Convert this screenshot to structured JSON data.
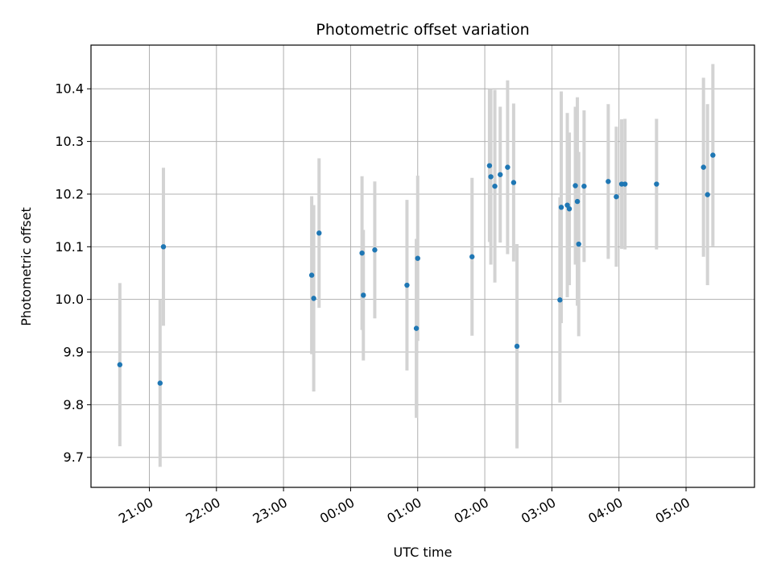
{
  "chart_data": {
    "type": "scatter",
    "title": "Photometric offset variation",
    "xlabel": "UTC time",
    "ylabel": "Photometric offset",
    "x_unit": "hours since 00:00 UTC (negative = previous day)",
    "xlim": [
      -3.87,
      6.02
    ],
    "ylim": [
      9.643,
      10.483
    ],
    "x_ticks": [
      {
        "value": -3,
        "label": "21:00"
      },
      {
        "value": -2,
        "label": "22:00"
      },
      {
        "value": -1,
        "label": "23:00"
      },
      {
        "value": 0,
        "label": "00:00"
      },
      {
        "value": 1,
        "label": "01:00"
      },
      {
        "value": 2,
        "label": "02:00"
      },
      {
        "value": 3,
        "label": "03:00"
      },
      {
        "value": 4,
        "label": "04:00"
      },
      {
        "value": 5,
        "label": "05:00"
      }
    ],
    "y_ticks": [
      {
        "value": 9.7,
        "label": "9.7"
      },
      {
        "value": 9.8,
        "label": "9.8"
      },
      {
        "value": 9.9,
        "label": "9.9"
      },
      {
        "value": 10.0,
        "label": "10.0"
      },
      {
        "value": 10.1,
        "label": "10.1"
      },
      {
        "value": 10.2,
        "label": "10.2"
      },
      {
        "value": 10.3,
        "label": "10.3"
      },
      {
        "value": 10.4,
        "label": "10.4"
      }
    ],
    "grid": true,
    "point_color": "#1f77b4",
    "errorbar_color": "#d3d3d3",
    "points": [
      {
        "x": -3.44,
        "y": 9.876,
        "err": 0.155
      },
      {
        "x": -2.84,
        "y": 9.841,
        "err": 0.159
      },
      {
        "x": -2.79,
        "y": 10.1,
        "err": 0.15
      },
      {
        "x": -0.58,
        "y": 10.046,
        "err": 0.15
      },
      {
        "x": -0.55,
        "y": 10.002,
        "err": 0.177
      },
      {
        "x": -0.47,
        "y": 10.126,
        "err": 0.142
      },
      {
        "x": 0.17,
        "y": 10.088,
        "err": 0.146
      },
      {
        "x": 0.19,
        "y": 10.008,
        "err": 0.124
      },
      {
        "x": 0.36,
        "y": 10.094,
        "err": 0.13
      },
      {
        "x": 0.84,
        "y": 10.027,
        "err": 0.162
      },
      {
        "x": 0.98,
        "y": 9.945,
        "err": 0.17
      },
      {
        "x": 1.0,
        "y": 10.078,
        "err": 0.157
      },
      {
        "x": 1.81,
        "y": 10.081,
        "err": 0.15
      },
      {
        "x": 2.07,
        "y": 10.254,
        "err": 0.145
      },
      {
        "x": 2.09,
        "y": 10.233,
        "err": 0.167
      },
      {
        "x": 2.15,
        "y": 10.215,
        "err": 0.183
      },
      {
        "x": 2.23,
        "y": 10.237,
        "err": 0.129
      },
      {
        "x": 2.34,
        "y": 10.251,
        "err": 0.165
      },
      {
        "x": 2.43,
        "y": 10.222,
        "err": 0.15
      },
      {
        "x": 2.48,
        "y": 9.911,
        "err": 0.194
      },
      {
        "x": 3.12,
        "y": 9.999,
        "err": 0.195
      },
      {
        "x": 3.14,
        "y": 10.175,
        "err": 0.22
      },
      {
        "x": 3.23,
        "y": 10.179,
        "err": 0.175
      },
      {
        "x": 3.26,
        "y": 10.172,
        "err": 0.145
      },
      {
        "x": 3.35,
        "y": 10.216,
        "err": 0.15
      },
      {
        "x": 3.38,
        "y": 10.186,
        "err": 0.198
      },
      {
        "x": 3.4,
        "y": 10.105,
        "err": 0.175
      },
      {
        "x": 3.48,
        "y": 10.215,
        "err": 0.144
      },
      {
        "x": 3.84,
        "y": 10.224,
        "err": 0.147
      },
      {
        "x": 3.96,
        "y": 10.195,
        "err": 0.133
      },
      {
        "x": 4.04,
        "y": 10.219,
        "err": 0.123
      },
      {
        "x": 4.09,
        "y": 10.219,
        "err": 0.124
      },
      {
        "x": 4.56,
        "y": 10.219,
        "err": 0.124
      },
      {
        "x": 5.26,
        "y": 10.251,
        "err": 0.17
      },
      {
        "x": 5.32,
        "y": 10.199,
        "err": 0.172
      },
      {
        "x": 5.4,
        "y": 10.274,
        "err": 0.173
      }
    ]
  }
}
